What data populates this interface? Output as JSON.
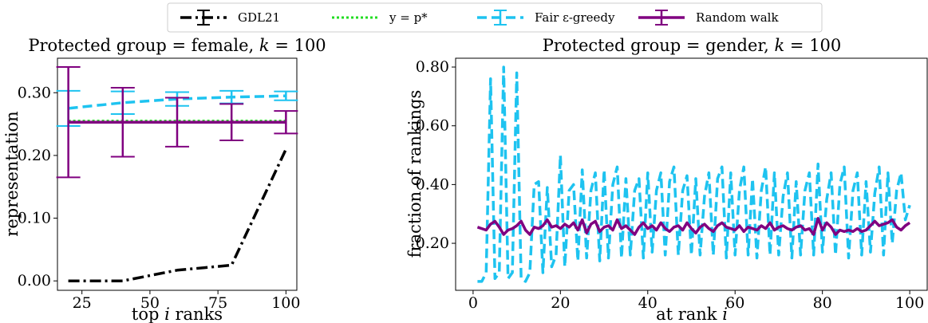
{
  "legend": {
    "entries": [
      {
        "label": "GDL21",
        "color": "#000000",
        "style": "dashdot",
        "errorbar": true
      },
      {
        "label": "y = p*",
        "color": "#22dd22",
        "style": "dotted",
        "errorbar": false
      },
      {
        "label": "Fair ε-greedy",
        "color": "#1ec3f0",
        "style": "dashed",
        "errorbar": true
      },
      {
        "label": "Random walk",
        "color": "#800080",
        "style": "solid",
        "errorbar": true
      }
    ]
  },
  "chart_data": [
    {
      "type": "line",
      "title": "Protected group = female, k = 100",
      "xlabel": "top i ranks",
      "ylabel": "representation",
      "xlim": [
        16,
        104
      ],
      "ylim": [
        -0.015,
        0.355
      ],
      "xticks": [
        25,
        50,
        75,
        100
      ],
      "yticks": [
        0.0,
        0.1,
        0.2,
        0.3
      ],
      "ytick_labels": [
        "0.00",
        "0.10",
        "0.20",
        "0.30"
      ],
      "grid": false,
      "series": [
        {
          "name": "GDL21",
          "color": "#000000",
          "style": "dashdot",
          "x": [
            20,
            40,
            60,
            80,
            100
          ],
          "y": [
            0.0,
            0.0,
            0.017,
            0.025,
            0.21
          ],
          "err": [
            0,
            0,
            0,
            0,
            0
          ]
        },
        {
          "name": "y = p*",
          "color": "#22dd22",
          "style": "dotted",
          "x": [
            20,
            100
          ],
          "y": [
            0.255,
            0.255
          ]
        },
        {
          "name": "Fair ε-greedy",
          "color": "#1ec3f0",
          "style": "dashed",
          "x": [
            20,
            40,
            60,
            80,
            100
          ],
          "y": [
            0.275,
            0.284,
            0.29,
            0.293,
            0.295
          ],
          "err": [
            0.028,
            0.018,
            0.011,
            0.01,
            0.007
          ]
        },
        {
          "name": "Random walk",
          "color": "#800080",
          "style": "solid",
          "x": [
            20,
            40,
            60,
            80,
            100
          ],
          "y": [
            0.253,
            0.253,
            0.253,
            0.253,
            0.253
          ],
          "err": [
            0.088,
            0.055,
            0.039,
            0.029,
            0.018
          ]
        }
      ]
    },
    {
      "type": "line",
      "title": "Protected group = gender, k = 100",
      "xlabel": "at rank i",
      "ylabel": "fraction of rankings",
      "xlim": [
        -4,
        104
      ],
      "ylim": [
        0.04,
        0.83
      ],
      "xticks": [
        0,
        20,
        40,
        60,
        80,
        100
      ],
      "yticks": [
        0.2,
        0.4,
        0.6,
        0.8
      ],
      "ytick_labels": [
        "0.20",
        "0.40",
        "0.60",
        "0.80"
      ],
      "grid": false,
      "series": [
        {
          "name": "Fair ε-greedy",
          "color": "#1ec3f0",
          "style": "dashed",
          "x": [
            1,
            2,
            3,
            4,
            5,
            6,
            7,
            8,
            9,
            10,
            11,
            12,
            13,
            14,
            15,
            16,
            17,
            18,
            19,
            20,
            21,
            22,
            23,
            24,
            25,
            26,
            27,
            28,
            29,
            30,
            31,
            32,
            33,
            34,
            35,
            36,
            37,
            38,
            39,
            40,
            41,
            42,
            43,
            44,
            45,
            46,
            47,
            48,
            49,
            50,
            51,
            52,
            53,
            54,
            55,
            56,
            57,
            58,
            59,
            60,
            61,
            62,
            63,
            64,
            65,
            66,
            67,
            68,
            69,
            70,
            71,
            72,
            73,
            74,
            75,
            76,
            77,
            78,
            79,
            80,
            81,
            82,
            83,
            84,
            85,
            86,
            87,
            88,
            89,
            90,
            91,
            92,
            93,
            94,
            95,
            96,
            97,
            98,
            99,
            100
          ],
          "y": [
            0.07,
            0.07,
            0.1,
            0.76,
            0.08,
            0.1,
            0.8,
            0.08,
            0.1,
            0.78,
            0.08,
            0.07,
            0.1,
            0.4,
            0.41,
            0.1,
            0.39,
            0.12,
            0.16,
            0.5,
            0.12,
            0.38,
            0.4,
            0.14,
            0.45,
            0.15,
            0.38,
            0.44,
            0.14,
            0.45,
            0.15,
            0.4,
            0.46,
            0.15,
            0.42,
            0.16,
            0.38,
            0.42,
            0.15,
            0.44,
            0.17,
            0.38,
            0.44,
            0.16,
            0.41,
            0.46,
            0.16,
            0.38,
            0.43,
            0.16,
            0.42,
            0.16,
            0.36,
            0.44,
            0.16,
            0.42,
            0.46,
            0.15,
            0.44,
            0.16,
            0.38,
            0.46,
            0.16,
            0.42,
            0.15,
            0.38,
            0.46,
            0.16,
            0.44,
            0.16,
            0.36,
            0.44,
            0.15,
            0.41,
            0.16,
            0.38,
            0.44,
            0.16,
            0.47,
            0.17,
            0.35,
            0.44,
            0.16,
            0.4,
            0.46,
            0.15,
            0.38,
            0.44,
            0.16,
            0.41,
            0.17,
            0.37,
            0.46,
            0.16,
            0.44,
            0.2,
            0.38,
            0.44,
            0.28,
            0.33
          ]
        },
        {
          "name": "Random walk",
          "color": "#800080",
          "style": "solid",
          "x": [
            1,
            2,
            3,
            4,
            5,
            6,
            7,
            8,
            9,
            10,
            11,
            12,
            13,
            14,
            15,
            16,
            17,
            18,
            19,
            20,
            21,
            22,
            23,
            24,
            25,
            26,
            27,
            28,
            29,
            30,
            31,
            32,
            33,
            34,
            35,
            36,
            37,
            38,
            39,
            40,
            41,
            42,
            43,
            44,
            45,
            46,
            47,
            48,
            49,
            50,
            51,
            52,
            53,
            54,
            55,
            56,
            57,
            58,
            59,
            60,
            61,
            62,
            63,
            64,
            65,
            66,
            67,
            68,
            69,
            70,
            71,
            72,
            73,
            74,
            75,
            76,
            77,
            78,
            79,
            80,
            81,
            82,
            83,
            84,
            85,
            86,
            87,
            88,
            89,
            90,
            91,
            92,
            93,
            94,
            95,
            96,
            97,
            98,
            99,
            100
          ],
          "y": [
            0.255,
            0.25,
            0.245,
            0.265,
            0.275,
            0.255,
            0.23,
            0.245,
            0.25,
            0.26,
            0.275,
            0.245,
            0.23,
            0.255,
            0.25,
            0.26,
            0.28,
            0.255,
            0.26,
            0.25,
            0.265,
            0.255,
            0.27,
            0.245,
            0.28,
            0.235,
            0.265,
            0.275,
            0.24,
            0.255,
            0.26,
            0.245,
            0.28,
            0.25,
            0.26,
            0.245,
            0.23,
            0.255,
            0.27,
            0.25,
            0.26,
            0.245,
            0.27,
            0.25,
            0.24,
            0.255,
            0.26,
            0.245,
            0.27,
            0.25,
            0.235,
            0.255,
            0.265,
            0.25,
            0.24,
            0.26,
            0.27,
            0.255,
            0.25,
            0.245,
            0.26,
            0.24,
            0.255,
            0.25,
            0.245,
            0.26,
            0.25,
            0.27,
            0.245,
            0.255,
            0.26,
            0.25,
            0.245,
            0.255,
            0.26,
            0.245,
            0.25,
            0.23,
            0.285,
            0.245,
            0.27,
            0.255,
            0.23,
            0.245,
            0.24,
            0.245,
            0.24,
            0.25,
            0.24,
            0.245,
            0.26,
            0.275,
            0.26,
            0.265,
            0.27,
            0.28,
            0.255,
            0.245,
            0.26,
            0.27
          ]
        }
      ]
    }
  ]
}
